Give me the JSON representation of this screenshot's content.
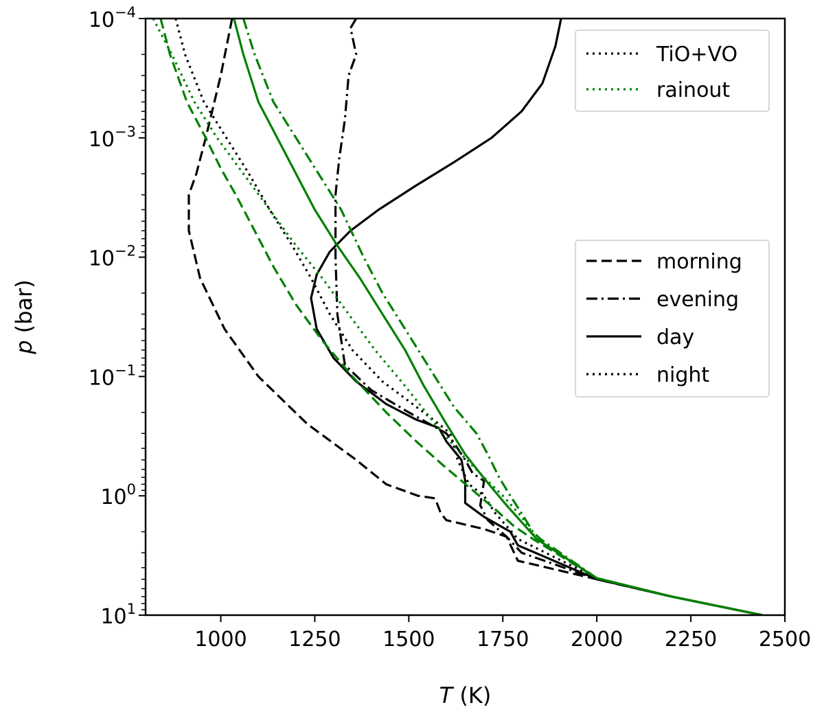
{
  "chart_data": {
    "type": "line",
    "title": "",
    "xlabel": {
      "var": "T",
      "unit": " (K)"
    },
    "ylabel": {
      "var": "p",
      "unit": " (bar)"
    },
    "xlim": [
      800,
      2500
    ],
    "ylim": [
      0.0001,
      10
    ],
    "yscale": "log",
    "x_ticks": [
      1000,
      1250,
      1500,
      1750,
      2000,
      2250,
      2500
    ],
    "y_ticks": [
      {
        "value": 0.0001,
        "base": "10",
        "exp": "−4"
      },
      {
        "value": 0.001,
        "base": "10",
        "exp": "−3"
      },
      {
        "value": 0.01,
        "base": "10",
        "exp": "−2"
      },
      {
        "value": 0.1,
        "base": "10",
        "exp": "−1"
      },
      {
        "value": 1,
        "base": "10",
        "exp": "0"
      },
      {
        "value": 10,
        "base": "10",
        "exp": "1"
      }
    ],
    "colors": {
      "TiO+VO": "#000000",
      "rainout": "#008000"
    },
    "legend_model": {
      "placement": "upper-right",
      "entries": [
        {
          "label": "TiO+VO",
          "color": "#000000"
        },
        {
          "label": "rainout",
          "color": "#008000"
        }
      ]
    },
    "legend_region": {
      "placement": "center-right",
      "entries": [
        {
          "label": "morning",
          "style": "dashed"
        },
        {
          "label": "evening",
          "style": "dashdot"
        },
        {
          "label": "day",
          "style": "solid"
        },
        {
          "label": "night",
          "style": "dotted"
        }
      ]
    },
    "series": [
      {
        "name": "TiO+VO morning",
        "color": "#000000",
        "style": "dashed",
        "points": [
          [
            1030,
            0.0001
          ],
          [
            1000,
            0.0003
          ],
          [
            960,
            0.001
          ],
          [
            935,
            0.002
          ],
          [
            915,
            0.003
          ],
          [
            915,
            0.006
          ],
          [
            945,
            0.015
          ],
          [
            1010,
            0.04
          ],
          [
            1100,
            0.1
          ],
          [
            1230,
            0.25
          ],
          [
            1360,
            0.5
          ],
          [
            1440,
            0.8
          ],
          [
            1525,
            1
          ],
          [
            1570,
            1.05
          ],
          [
            1585,
            1.4
          ],
          [
            1600,
            1.6
          ],
          [
            1700,
            1.9
          ],
          [
            1760,
            2.2
          ],
          [
            1790,
            3.5
          ],
          [
            2000,
            5
          ],
          [
            2200,
            7
          ],
          [
            2440,
            10
          ]
        ]
      },
      {
        "name": "TiO+VO evening",
        "color": "#000000",
        "style": "dashdot",
        "points": [
          [
            1360,
            0.0001
          ],
          [
            1345,
            0.00012
          ],
          [
            1360,
            0.0002
          ],
          [
            1340,
            0.0003
          ],
          [
            1330,
            0.0007
          ],
          [
            1315,
            0.0015
          ],
          [
            1305,
            0.003
          ],
          [
            1305,
            0.005
          ],
          [
            1305,
            0.01
          ],
          [
            1310,
            0.03
          ],
          [
            1330,
            0.08
          ],
          [
            1400,
            0.13
          ],
          [
            1500,
            0.2
          ],
          [
            1600,
            0.3
          ],
          [
            1620,
            0.36
          ],
          [
            1650,
            0.5
          ],
          [
            1670,
            0.65
          ],
          [
            1700,
            0.75
          ],
          [
            1690,
            1.2
          ],
          [
            1710,
            1.6
          ],
          [
            1760,
            2.2
          ],
          [
            1800,
            3
          ],
          [
            2000,
            5
          ],
          [
            2200,
            7
          ],
          [
            2440,
            10
          ]
        ]
      },
      {
        "name": "TiO+VO day",
        "color": "#000000",
        "style": "solid",
        "points": [
          [
            1905,
            0.0001
          ],
          [
            1890,
            0.00017
          ],
          [
            1855,
            0.00035
          ],
          [
            1800,
            0.0006
          ],
          [
            1720,
            0.001
          ],
          [
            1620,
            0.0016
          ],
          [
            1520,
            0.0025
          ],
          [
            1420,
            0.004
          ],
          [
            1345,
            0.006
          ],
          [
            1290,
            0.009
          ],
          [
            1255,
            0.014
          ],
          [
            1240,
            0.022
          ],
          [
            1255,
            0.04
          ],
          [
            1300,
            0.07
          ],
          [
            1360,
            0.11
          ],
          [
            1440,
            0.17
          ],
          [
            1520,
            0.23
          ],
          [
            1580,
            0.27
          ],
          [
            1600,
            0.35
          ],
          [
            1640,
            0.5
          ],
          [
            1650,
            0.75
          ],
          [
            1650,
            1.15
          ],
          [
            1700,
            1.5
          ],
          [
            1770,
            2
          ],
          [
            1790,
            2.6
          ],
          [
            2000,
            5
          ],
          [
            2200,
            7
          ],
          [
            2440,
            10
          ]
        ]
      },
      {
        "name": "TiO+VO night",
        "color": "#000000",
        "style": "dotted",
        "points": [
          [
            880,
            0.0001
          ],
          [
            905,
            0.0002
          ],
          [
            955,
            0.0005
          ],
          [
            1015,
            0.001
          ],
          [
            1075,
            0.002
          ],
          [
            1130,
            0.004
          ],
          [
            1190,
            0.008
          ],
          [
            1240,
            0.015
          ],
          [
            1290,
            0.03
          ],
          [
            1350,
            0.06
          ],
          [
            1430,
            0.11
          ],
          [
            1510,
            0.17
          ],
          [
            1580,
            0.25
          ],
          [
            1610,
            0.3
          ],
          [
            1630,
            0.5
          ],
          [
            1660,
            0.8
          ],
          [
            1700,
            1
          ],
          [
            1730,
            1.4
          ],
          [
            1790,
            2.3
          ],
          [
            2000,
            4.9
          ],
          [
            2200,
            7
          ],
          [
            2440,
            10
          ]
        ]
      },
      {
        "name": "rainout morning",
        "color": "#008000",
        "style": "dashed",
        "points": [
          [
            840,
            0.0001
          ],
          [
            865,
            0.0002
          ],
          [
            910,
            0.0005
          ],
          [
            960,
            0.001
          ],
          [
            1000,
            0.0018
          ],
          [
            1040,
            0.003
          ],
          [
            1090,
            0.006
          ],
          [
            1140,
            0.012
          ],
          [
            1200,
            0.025
          ],
          [
            1270,
            0.05
          ],
          [
            1350,
            0.1
          ],
          [
            1440,
            0.2
          ],
          [
            1520,
            0.35
          ],
          [
            1590,
            0.55
          ],
          [
            1670,
            0.9
          ],
          [
            1730,
            1.3
          ],
          [
            1780,
            1.8
          ],
          [
            1830,
            2.3
          ],
          [
            2000,
            4.9
          ],
          [
            2200,
            7
          ],
          [
            2440,
            10
          ]
        ]
      },
      {
        "name": "rainout evening",
        "color": "#008000",
        "style": "dashdot",
        "points": [
          [
            1060,
            0.0001
          ],
          [
            1090,
            0.0002
          ],
          [
            1140,
            0.0005
          ],
          [
            1200,
            0.001
          ],
          [
            1260,
            0.002
          ],
          [
            1320,
            0.004
          ],
          [
            1380,
            0.01
          ],
          [
            1430,
            0.02
          ],
          [
            1490,
            0.04
          ],
          [
            1560,
            0.09
          ],
          [
            1620,
            0.18
          ],
          [
            1680,
            0.3
          ],
          [
            1710,
            0.45
          ],
          [
            1740,
            0.7
          ],
          [
            1770,
            1.0
          ],
          [
            1800,
            1.4
          ],
          [
            1830,
            2.0
          ],
          [
            1850,
            2.3
          ],
          [
            2000,
            4.9
          ],
          [
            2200,
            7
          ],
          [
            2440,
            10
          ]
        ]
      },
      {
        "name": "rainout day",
        "color": "#008000",
        "style": "solid",
        "points": [
          [
            1035,
            0.0001
          ],
          [
            1060,
            0.0002
          ],
          [
            1100,
            0.0005
          ],
          [
            1150,
            0.001
          ],
          [
            1200,
            0.002
          ],
          [
            1250,
            0.004
          ],
          [
            1310,
            0.008
          ],
          [
            1370,
            0.015
          ],
          [
            1430,
            0.03
          ],
          [
            1490,
            0.06
          ],
          [
            1540,
            0.12
          ],
          [
            1600,
            0.25
          ],
          [
            1650,
            0.45
          ],
          [
            1690,
            0.65
          ],
          [
            1720,
            0.85
          ],
          [
            1760,
            1.2
          ],
          [
            1810,
            1.8
          ],
          [
            1840,
            2.3
          ],
          [
            2000,
            4.9
          ],
          [
            2200,
            7
          ],
          [
            2440,
            10
          ]
        ]
      },
      {
        "name": "rainout night",
        "color": "#008000",
        "style": "dotted",
        "points": [
          [
            820,
            0.0001
          ],
          [
            870,
            0.0002
          ],
          [
            930,
            0.0005
          ],
          [
            990,
            0.001
          ],
          [
            1060,
            0.002
          ],
          [
            1130,
            0.004
          ],
          [
            1200,
            0.008
          ],
          [
            1270,
            0.015
          ],
          [
            1340,
            0.03
          ],
          [
            1410,
            0.06
          ],
          [
            1490,
            0.12
          ],
          [
            1570,
            0.25
          ],
          [
            1640,
            0.45
          ],
          [
            1700,
            0.7
          ],
          [
            1750,
            1.0
          ],
          [
            1800,
            1.5
          ],
          [
            1840,
            2.3
          ],
          [
            2000,
            4.9
          ],
          [
            2200,
            7
          ],
          [
            2440,
            10
          ]
        ]
      }
    ]
  }
}
